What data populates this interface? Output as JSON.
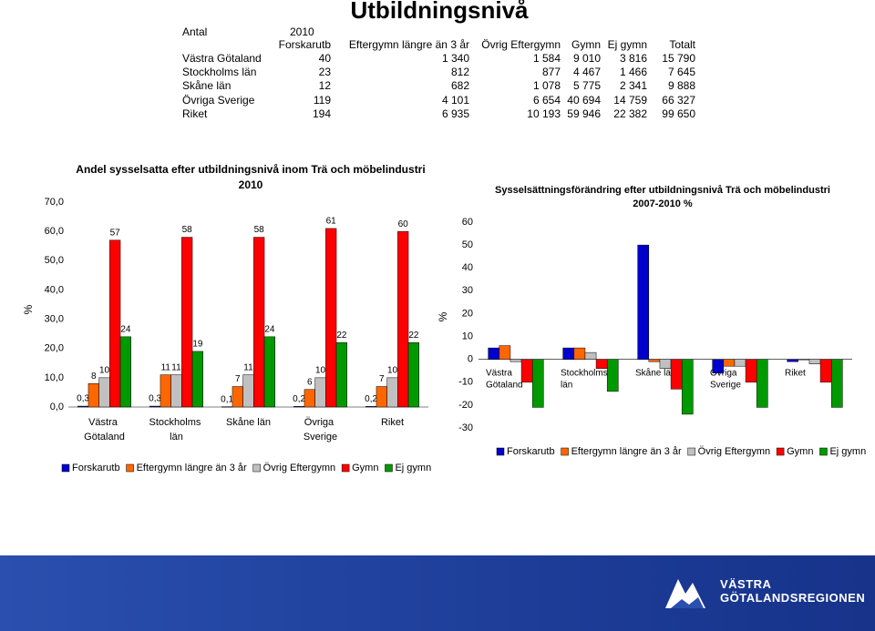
{
  "title": "Utbildningsnivå",
  "table": {
    "corner": "Antal",
    "year": "2010",
    "columns": [
      "Forskarutb",
      "Eftergymn längre än 3 år",
      "Övrig Eftergymn",
      "Gymn",
      "Ej gymn",
      "Totalt"
    ],
    "rows": [
      [
        "Västra Götaland",
        "40",
        "1 340",
        "1 584",
        "9 010",
        "3 816",
        "15 790"
      ],
      [
        "Stockholms län",
        "23",
        "812",
        "877",
        "4 467",
        "1 466",
        "7 645"
      ],
      [
        "Skåne län",
        "12",
        "682",
        "1 078",
        "5 775",
        "2 341",
        "9 888"
      ],
      [
        "Övriga Sverige",
        "119",
        "4 101",
        "6 654",
        "40 694",
        "14 759",
        "66 327"
      ],
      [
        "Riket",
        "194",
        "6 935",
        "10 193",
        "59 946",
        "22 382",
        "99 650"
      ]
    ]
  },
  "chart_data": [
    {
      "type": "bar",
      "title": "Andel sysselsatta efter utbildningsnivå inom Trä och möbelindustri",
      "subtitle": "2010",
      "ylabel": "%",
      "categories": [
        "Västra Götaland",
        "Stockholms län",
        "Skåne län",
        "Övriga Sverige",
        "Riket"
      ],
      "series": [
        {
          "name": "Forskarutb",
          "color": "#0000cc",
          "values": [
            0.3,
            0.3,
            0.1,
            0.2,
            0.2
          ],
          "value_labels": [
            "0,3",
            "0,3",
            "0,1",
            "0,2",
            "0,2"
          ]
        },
        {
          "name": "Eftergymn längre än 3 år",
          "color": "#ff6600",
          "values": [
            8,
            11,
            7,
            6,
            7
          ]
        },
        {
          "name": "Övrig Eftergymn",
          "color": "#c0c0c0",
          "values": [
            10,
            11,
            11,
            10,
            10
          ]
        },
        {
          "name": "Gymn",
          "color": "#ff0000",
          "values": [
            57,
            58,
            58,
            61,
            60
          ]
        },
        {
          "name": "Ej gymn",
          "color": "#009900",
          "values": [
            24,
            19,
            24,
            22,
            22
          ]
        }
      ],
      "ylim": [
        0,
        70
      ],
      "yticks": [
        {
          "value": 0,
          "label": "0,0"
        },
        {
          "value": 10,
          "label": "10,0"
        },
        {
          "value": 20,
          "label": "20,0"
        },
        {
          "value": 30,
          "label": "30,0"
        },
        {
          "value": 40,
          "label": "40,0"
        },
        {
          "value": 50,
          "label": "50,0"
        },
        {
          "value": 60,
          "label": "60,0"
        },
        {
          "value": 70,
          "label": "70,0"
        }
      ],
      "data_labels": true,
      "legend": "bottom"
    },
    {
      "type": "bar",
      "title": "Sysselsättningsförändring efter utbildningsnivå Trä och möbelindustri",
      "subtitle": "2007-2010 %",
      "ylabel": "%",
      "categories": [
        "Västra Götaland",
        "Stockholms län",
        "Skåne län",
        "Övriga Sverige",
        "Riket"
      ],
      "series": [
        {
          "name": "Forskarutb",
          "color": "#0000cc",
          "values": [
            5,
            5,
            50,
            -6,
            -1
          ]
        },
        {
          "name": "Eftergymn längre än 3 år",
          "color": "#ff6600",
          "values": [
            6,
            5,
            -1,
            -3,
            0
          ]
        },
        {
          "name": "Övrig Eftergymn",
          "color": "#c0c0c0",
          "values": [
            -1,
            3,
            -4,
            -3,
            -2
          ]
        },
        {
          "name": "Gymn",
          "color": "#ff0000",
          "values": [
            -10,
            -4,
            -13,
            -10,
            -10
          ]
        },
        {
          "name": "Ej gymn",
          "color": "#009900",
          "values": [
            -21,
            -14,
            -24,
            -21,
            -21
          ]
        }
      ],
      "ylim": [
        -30,
        60
      ],
      "yticks": [
        -30,
        -20,
        -10,
        0,
        10,
        20,
        30,
        40,
        50,
        60
      ],
      "data_labels": false,
      "legend": "bottom"
    }
  ],
  "footer": {
    "logo": [
      "VÄSTRA",
      "GÖTALANDSREGIONEN"
    ]
  }
}
